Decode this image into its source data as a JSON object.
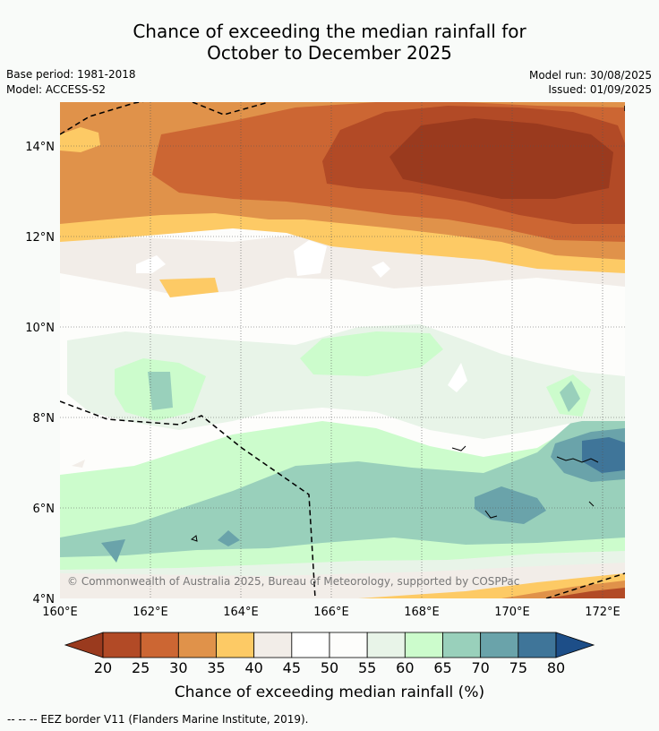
{
  "title_line1": "Chance of exceeding the median rainfall for",
  "title_line2": "October to December 2025",
  "meta": {
    "base_period": "Base period: 1981-2018",
    "model": "Model: ACCESS-S2",
    "model_run": "Model run: 30/08/2025",
    "issued": "Issued: 01/09/2025"
  },
  "map": {
    "lat_ticks": [
      "14°N",
      "12°N",
      "10°N",
      "8°N",
      "6°N",
      "4°N"
    ],
    "lon_ticks": [
      "160°E",
      "162°E",
      "164°E",
      "166°E",
      "168°E",
      "170°E",
      "172°E"
    ],
    "copyright": "© Commonwealth of Australia 2025, Bureau of Meteorology, supported by COSPPac"
  },
  "colorbar": {
    "labels": [
      "20",
      "25",
      "30",
      "35",
      "40",
      "45",
      "50",
      "55",
      "60",
      "65",
      "70",
      "75",
      "80"
    ],
    "colors": [
      "#9a3a1e",
      "#b24a26",
      "#cc6633",
      "#e0924a",
      "#fdca65",
      "#f2ede8",
      "#ffffff",
      "#fdfdfb",
      "#e8f4e8",
      "#ccfccc",
      "#99d0bb",
      "#6aa3aa",
      "#3f7599",
      "#1d4e88"
    ],
    "title": "Chance of exceeding median rainfall (%)"
  },
  "footnote": "--  --  -- EEZ border V11 (Flanders Marine Institute, 2019)."
}
